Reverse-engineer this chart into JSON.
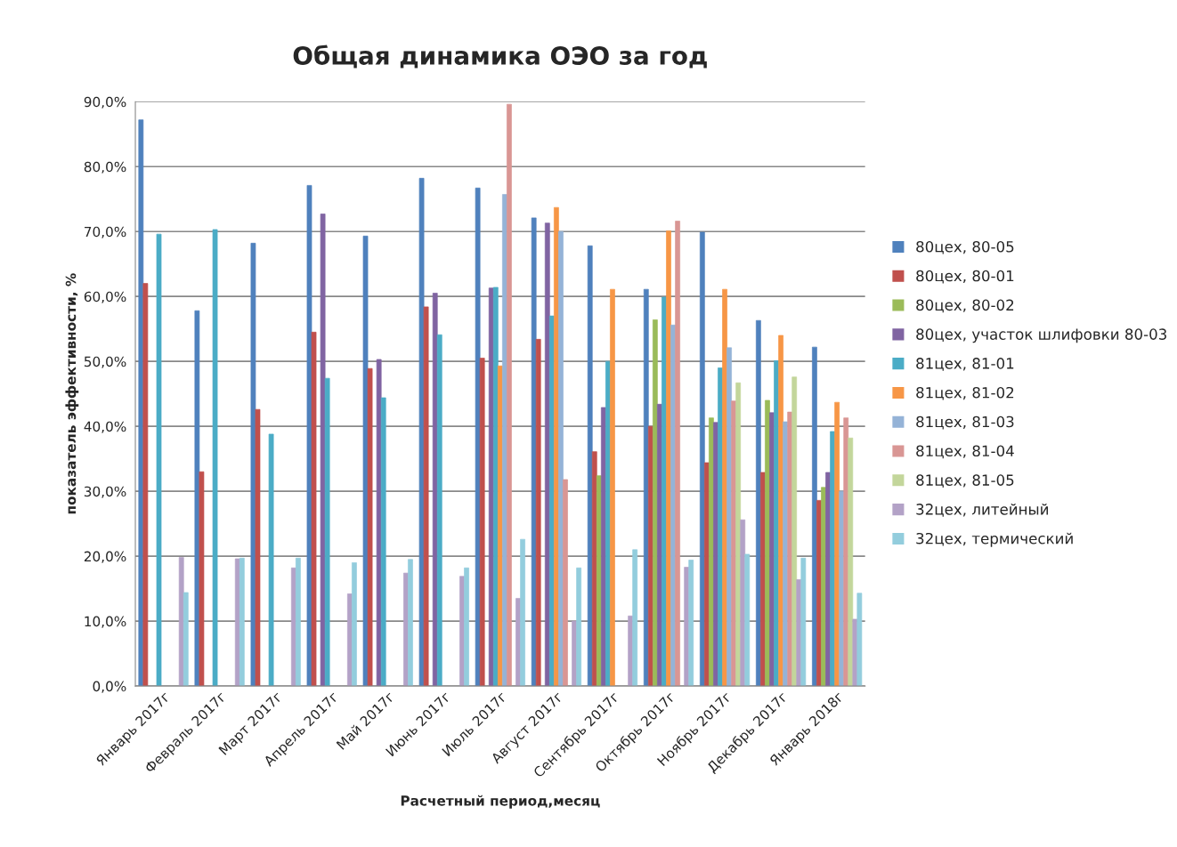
{
  "chart_data": {
    "type": "bar",
    "title": "Общая динамика ОЭО за год",
    "xlabel": "Расчетный период,месяц",
    "ylabel": "показатель эффективности, %",
    "categories": [
      "Январь 2017г",
      "Февраль 2017г",
      "Март 2017г",
      "Апрель 2017г",
      "Май 2017г",
      "Июнь 2017г",
      "Июль 2017г",
      "Август 2017г",
      "Сентябрь 2017г",
      "Октябрь 2017г",
      "Ноябрь 2017г",
      "Декабрь 2017г",
      "Январь 2018г"
    ],
    "series": [
      {
        "name": "80цех, 80-05",
        "color": "#4f81bd",
        "values": [
          87.2,
          57.8,
          68.2,
          77.1,
          69.3,
          78.2,
          76.7,
          72.1,
          67.8,
          61.1,
          69.9,
          56.3,
          52.2
        ]
      },
      {
        "name": "80цех, 80-01",
        "color": "#c0504d",
        "values": [
          62.0,
          33.0,
          42.6,
          54.5,
          48.9,
          58.4,
          50.5,
          53.4,
          36.1,
          40.0,
          34.4,
          32.9,
          28.6
        ]
      },
      {
        "name": "80цех, 80-02",
        "color": "#9bbb59",
        "values": [
          null,
          null,
          null,
          null,
          null,
          null,
          null,
          null,
          32.4,
          56.4,
          41.3,
          44.0,
          30.6
        ]
      },
      {
        "name": "80цех, участок шлифовки 80-03",
        "color": "#8064a2",
        "values": [
          null,
          null,
          null,
          72.7,
          50.3,
          60.5,
          61.3,
          71.3,
          42.9,
          43.4,
          40.6,
          42.1,
          32.9
        ]
      },
      {
        "name": "81цех, 81-01",
        "color": "#4bacc6",
        "values": [
          69.6,
          70.3,
          38.8,
          47.4,
          44.4,
          54.1,
          61.4,
          57.0,
          50.0,
          59.9,
          49.0,
          50.1,
          39.2
        ]
      },
      {
        "name": "81цех, 81-02",
        "color": "#f79646",
        "values": [
          null,
          null,
          null,
          null,
          null,
          null,
          49.3,
          73.7,
          61.1,
          70.1,
          61.1,
          54.0,
          43.7
        ]
      },
      {
        "name": "81цех, 81-03",
        "color": "#95b3d7",
        "values": [
          null,
          null,
          null,
          null,
          null,
          null,
          75.7,
          70.0,
          null,
          55.6,
          52.1,
          40.7,
          30.0
        ]
      },
      {
        "name": "81цех, 81-04",
        "color": "#d99694",
        "values": [
          null,
          null,
          null,
          null,
          null,
          null,
          89.6,
          31.8,
          null,
          71.6,
          43.9,
          42.2,
          41.3
        ]
      },
      {
        "name": "81цех, 81-05",
        "color": "#c3d69b",
        "values": [
          null,
          null,
          null,
          null,
          null,
          null,
          null,
          null,
          null,
          null,
          46.7,
          47.6,
          38.2
        ]
      },
      {
        "name": "32цех, литейный",
        "color": "#b3a2c7",
        "values": [
          19.8,
          19.6,
          18.2,
          14.2,
          17.4,
          16.9,
          13.5,
          10.0,
          10.8,
          18.3,
          25.6,
          16.4,
          10.3
        ]
      },
      {
        "name": "32цех, термический",
        "color": "#93cddd",
        "values": [
          14.4,
          19.7,
          19.7,
          19.0,
          19.5,
          18.2,
          22.6,
          18.2,
          21.0,
          19.4,
          20.3,
          19.7,
          14.3
        ]
      }
    ],
    "ylim": [
      0,
      90
    ],
    "yticks": [
      {
        "value": 0,
        "label": "0,0%"
      },
      {
        "value": 10,
        "label": "10,0%"
      },
      {
        "value": 20,
        "label": "20,0%"
      },
      {
        "value": 30,
        "label": "30,0%"
      },
      {
        "value": 40,
        "label": "40,0%"
      },
      {
        "value": 50,
        "label": "50,0%"
      },
      {
        "value": 60,
        "label": "60,0%"
      },
      {
        "value": 70,
        "label": "70,0%"
      },
      {
        "value": 80,
        "label": "80,0%"
      },
      {
        "value": 90,
        "label": "90,0%"
      }
    ],
    "grid": "y",
    "legend": "right"
  }
}
